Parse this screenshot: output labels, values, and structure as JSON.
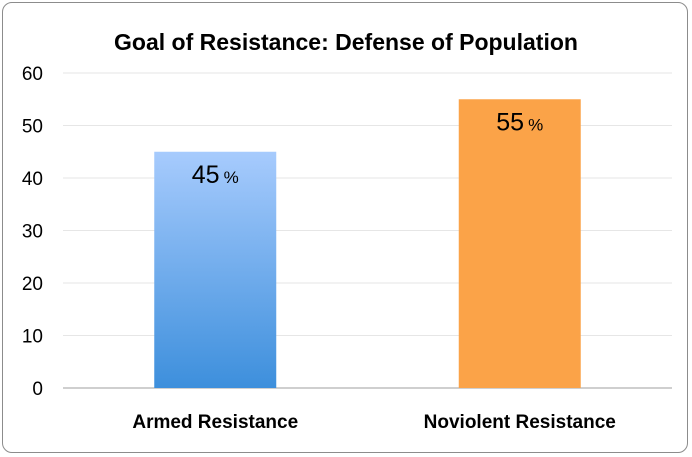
{
  "chart_data": {
    "type": "bar",
    "title": "Goal of Resistance: Defense of Population",
    "xlabel": "",
    "ylabel": "",
    "categories": [
      "Armed Resistance",
      "Noviolent Resistance"
    ],
    "values": [
      45,
      55
    ],
    "data_labels": [
      "45",
      "55"
    ],
    "data_label_suffix": "%",
    "ylim": [
      0,
      60
    ],
    "yticks": [
      0,
      10,
      20,
      30,
      40,
      50,
      60
    ],
    "ytick_labels": [
      "0",
      "10",
      "20",
      "30",
      "40",
      "50",
      "60"
    ],
    "grid": true,
    "legend": "none",
    "colors": {
      "bar_0_top": "#a7cbfd",
      "bar_0_bottom": "#3d8fdc",
      "bar_1": "#fba348",
      "grid": "#e6e6e6",
      "axis": "#bfbfbf"
    }
  }
}
